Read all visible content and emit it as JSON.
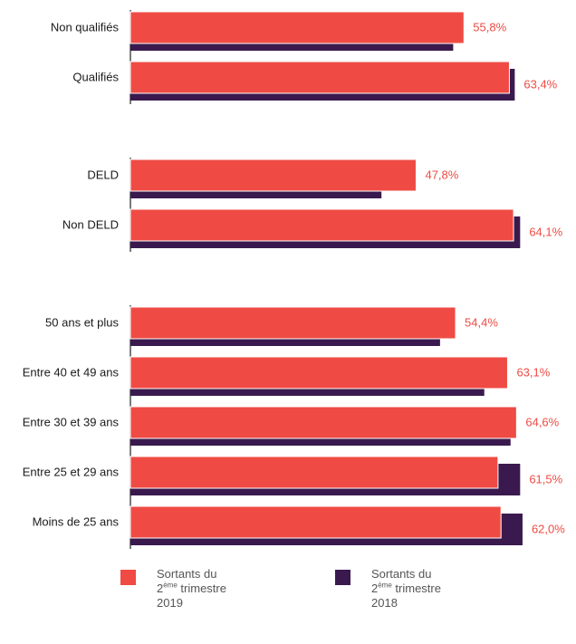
{
  "chart_data": {
    "type": "bar",
    "orientation": "horizontal",
    "groups": [
      [
        "Non qualifiés",
        "Qualifiés"
      ],
      [
        "DELD",
        "Non DELD"
      ],
      [
        "50 ans et plus",
        "Entre 40 et 49 ans",
        "Entre 30 et 39 ans",
        "Entre 25 et 29 ans",
        "Moins de 25 ans"
      ]
    ],
    "categories": [
      "Non qualifiés",
      "Qualifiés",
      "DELD",
      "Non DELD",
      "50 ans et plus",
      "Entre 40 et 49 ans",
      "Entre 30 et 39 ans",
      "Entre 25 et 29 ans",
      "Moins de 25 ans"
    ],
    "series": [
      {
        "name": "Sortants du 2ème trimestre 2019",
        "color": "#ef4b44",
        "values": [
          55.8,
          63.4,
          47.8,
          64.1,
          54.4,
          63.1,
          64.6,
          61.5,
          62.0
        ],
        "value_labels": [
          "55,8%",
          "63,4%",
          "47,8%",
          "64,1%",
          "54,4%",
          "63,1%",
          "64,6%",
          "61,5%",
          "62,0%"
        ]
      },
      {
        "name": "Sortants du 2ème trimestre 2018",
        "color": "#3a1a4e",
        "values": [
          54.0,
          64.3,
          42.0,
          65.2,
          51.8,
          59.2,
          63.6,
          65.2,
          65.6
        ]
      }
    ],
    "label_color": "#ef4b44",
    "axis_color": "#222222",
    "xlim": [
      0,
      100
    ]
  },
  "legend": [
    {
      "color": "#ef4b44",
      "line1": "Sortants du",
      "ord_num": "2",
      "ord_sup": "ème",
      "ord_rest": " trimestre",
      "year": "2019"
    },
    {
      "color": "#3a1a4e",
      "line1": "Sortants du",
      "ord_num": "2",
      "ord_sup": "ème",
      "ord_rest": " trimestre",
      "year": "2018"
    }
  ]
}
